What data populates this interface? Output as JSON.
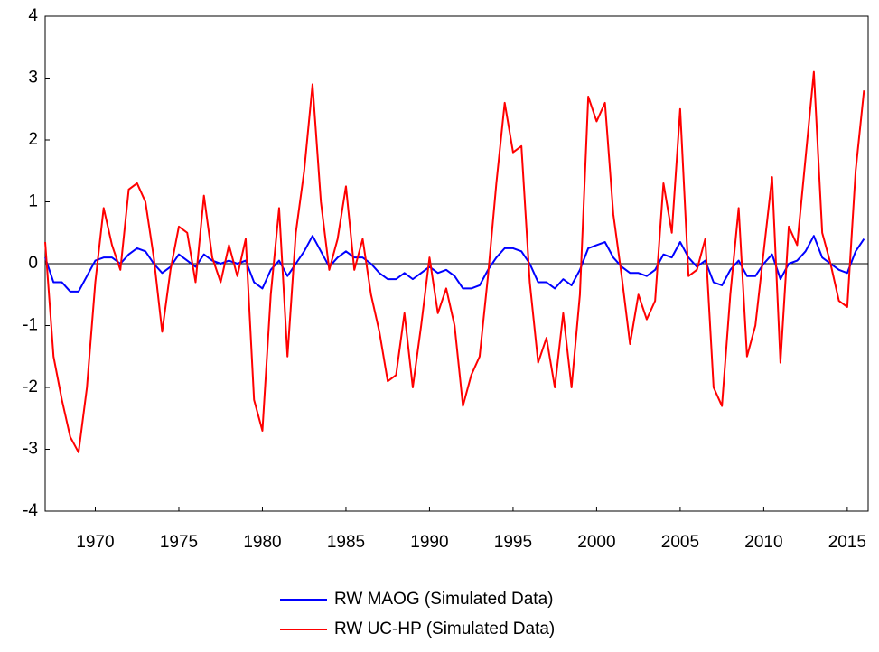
{
  "chart_data": {
    "type": "line",
    "x": [
      1967,
      1967.5,
      1968,
      1968.5,
      1969,
      1969.5,
      1970,
      1970.5,
      1971,
      1971.5,
      1972,
      1972.5,
      1973,
      1973.5,
      1974,
      1974.5,
      1975,
      1975.5,
      1976,
      1976.5,
      1977,
      1977.5,
      1978,
      1978.5,
      1979,
      1979.5,
      1980,
      1980.5,
      1981,
      1981.5,
      1982,
      1982.5,
      1983,
      1983.5,
      1984,
      1984.5,
      1985,
      1985.5,
      1986,
      1986.5,
      1987,
      1987.5,
      1988,
      1988.5,
      1989,
      1989.5,
      1990,
      1990.5,
      1991,
      1991.5,
      1992,
      1992.5,
      1993,
      1993.5,
      1994,
      1994.5,
      1995,
      1995.5,
      1996,
      1996.5,
      1997,
      1997.5,
      1998,
      1998.5,
      1999,
      1999.5,
      2000,
      2000.5,
      2001,
      2001.5,
      2002,
      2002.5,
      2003,
      2003.5,
      2004,
      2004.5,
      2005,
      2005.5,
      2006,
      2006.5,
      2007,
      2007.5,
      2008,
      2008.5,
      2009,
      2009.5,
      2010,
      2010.5,
      2011,
      2011.5,
      2012,
      2012.5,
      2013,
      2013.5,
      2014,
      2014.5,
      2015,
      2015.5,
      2016
    ],
    "series": [
      {
        "name": "RW MAOG (Simulated Data)",
        "color": "#0000ff",
        "values": [
          0.1,
          -0.3,
          -0.3,
          -0.45,
          -0.45,
          -0.2,
          0.05,
          0.1,
          0.1,
          0.0,
          0.15,
          0.25,
          0.2,
          0.0,
          -0.15,
          -0.05,
          0.15,
          0.05,
          -0.05,
          0.15,
          0.05,
          0.0,
          0.05,
          0.0,
          0.05,
          -0.3,
          -0.4,
          -0.1,
          0.05,
          -0.2,
          0.0,
          0.2,
          0.45,
          0.2,
          -0.05,
          0.1,
          0.2,
          0.1,
          0.1,
          0.0,
          -0.15,
          -0.25,
          -0.25,
          -0.15,
          -0.25,
          -0.15,
          -0.05,
          -0.15,
          -0.1,
          -0.2,
          -0.4,
          -0.4,
          -0.35,
          -0.1,
          0.1,
          0.25,
          0.25,
          0.2,
          0.0,
          -0.3,
          -0.3,
          -0.4,
          -0.25,
          -0.35,
          -0.1,
          0.25,
          0.3,
          0.35,
          0.1,
          -0.05,
          -0.15,
          -0.15,
          -0.2,
          -0.1,
          0.15,
          0.1,
          0.35,
          0.1,
          -0.05,
          0.05,
          -0.3,
          -0.35,
          -0.1,
          0.05,
          -0.2,
          -0.2,
          0.0,
          0.15,
          -0.25,
          0.0,
          0.05,
          0.2,
          0.45,
          0.1,
          0.0,
          -0.1,
          -0.15,
          0.2,
          0.4
        ]
      },
      {
        "name": "RW UC-HP (Simulated Data)",
        "color": "#ff0000",
        "values": [
          0.35,
          -1.5,
          -2.2,
          -2.8,
          -3.05,
          -2.0,
          -0.3,
          0.9,
          0.3,
          -0.1,
          1.2,
          1.3,
          1.0,
          0.1,
          -1.1,
          -0.1,
          0.6,
          0.5,
          -0.3,
          1.1,
          0.1,
          -0.3,
          0.3,
          -0.2,
          0.4,
          -2.2,
          -2.7,
          -0.5,
          0.9,
          -1.5,
          0.5,
          1.5,
          2.9,
          1.0,
          -0.1,
          0.4,
          1.25,
          -0.1,
          0.4,
          -0.5,
          -1.1,
          -1.9,
          -1.8,
          -0.8,
          -2.0,
          -1.0,
          0.1,
          -0.8,
          -0.4,
          -1.0,
          -2.3,
          -1.8,
          -1.5,
          -0.2,
          1.3,
          2.6,
          1.8,
          1.9,
          -0.3,
          -1.6,
          -1.2,
          -2.0,
          -0.8,
          -2.0,
          -0.5,
          2.7,
          2.3,
          2.6,
          0.8,
          -0.2,
          -1.3,
          -0.5,
          -0.9,
          -0.6,
          1.3,
          0.5,
          2.5,
          -0.2,
          -0.1,
          0.4,
          -2.0,
          -2.3,
          -0.5,
          0.9,
          -1.5,
          -1.0,
          0.2,
          1.4,
          -1.6,
          0.6,
          0.3,
          1.7,
          3.1,
          0.5,
          0.0,
          -0.6,
          -0.7,
          1.5,
          2.8
        ]
      }
    ],
    "xlim": [
      1967,
      2016.25
    ],
    "xticks": [
      1970,
      1975,
      1980,
      1985,
      1990,
      1995,
      2000,
      2005,
      2010,
      2015
    ],
    "ylim": [
      -4,
      4
    ],
    "yticks": [
      -4,
      -3,
      -2,
      -1,
      0,
      1,
      2,
      3,
      4
    ],
    "zero_line": true,
    "legend": "bottom"
  }
}
